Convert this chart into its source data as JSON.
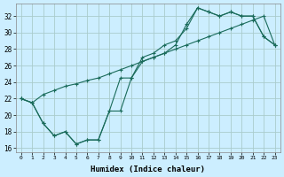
{
  "xlabel": "Humidex (Indice chaleur)",
  "bg_color": "#cceeff",
  "grid_color": "#aacccc",
  "line_color": "#1a6b5a",
  "xlim": [
    -0.5,
    23.5
  ],
  "ylim": [
    15.5,
    33.5
  ],
  "xticks": [
    0,
    1,
    2,
    3,
    4,
    5,
    6,
    7,
    8,
    9,
    10,
    11,
    12,
    13,
    14,
    15,
    16,
    17,
    18,
    19,
    20,
    21,
    22,
    23
  ],
  "yticks": [
    16,
    18,
    20,
    22,
    24,
    26,
    28,
    30,
    32
  ],
  "series1_x": [
    0,
    1,
    2,
    3,
    4,
    5,
    6,
    7,
    8,
    9,
    10,
    11,
    12,
    13,
    14,
    15,
    16,
    17,
    18,
    19,
    20,
    21,
    22,
    23
  ],
  "series1_y": [
    22.0,
    21.5,
    19.0,
    17.5,
    18.0,
    16.5,
    17.0,
    17.0,
    20.5,
    20.5,
    24.5,
    26.5,
    27.0,
    27.5,
    28.5,
    31.0,
    33.0,
    32.5,
    32.0,
    32.5,
    32.0,
    32.0,
    29.5,
    28.5
  ],
  "series2_x": [
    0,
    1,
    2,
    3,
    4,
    5,
    6,
    7,
    8,
    9,
    10,
    11,
    12,
    13,
    14,
    15,
    16,
    17,
    18,
    19,
    20,
    21,
    22,
    23
  ],
  "series2_y": [
    22.0,
    21.5,
    22.5,
    23.0,
    23.5,
    23.8,
    24.2,
    24.5,
    25.0,
    25.5,
    26.0,
    26.5,
    27.0,
    27.5,
    28.0,
    28.5,
    29.0,
    29.5,
    30.0,
    30.5,
    31.0,
    31.5,
    32.0,
    28.5
  ],
  "series3_x": [
    0,
    1,
    2,
    3,
    4,
    5,
    6,
    7,
    8,
    9,
    10,
    11,
    12,
    13,
    14,
    15,
    16,
    17,
    18,
    19,
    20,
    21,
    22,
    23
  ],
  "series3_y": [
    22.0,
    21.5,
    19.0,
    17.5,
    18.0,
    16.5,
    17.0,
    17.0,
    20.5,
    24.5,
    24.5,
    27.0,
    27.5,
    28.5,
    29.0,
    30.5,
    33.0,
    32.5,
    32.0,
    32.5,
    32.0,
    32.0,
    29.5,
    28.5
  ]
}
